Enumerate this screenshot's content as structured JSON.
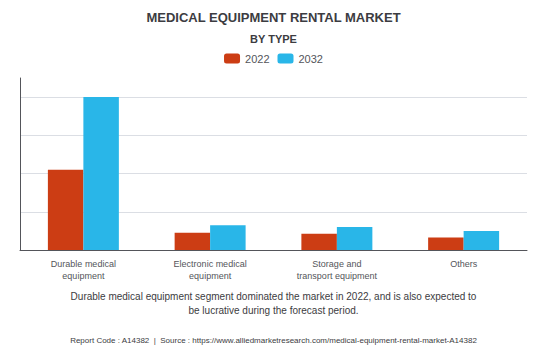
{
  "chart_data": {
    "type": "bar",
    "title": "MEDICAL EQUIPMENT RENTAL MARKET",
    "subtitle": "BY TYPE",
    "categories": [
      "Durable medical\nequipment",
      "Electronic medical\nequipment",
      "Storage and\ntransport equipment",
      "Others"
    ],
    "series": [
      {
        "name": "2022",
        "color": "#CC3D14",
        "values": [
          42,
          9,
          8.5,
          6.5
        ]
      },
      {
        "name": "2032",
        "color": "#29B6E8",
        "values": [
          80,
          13,
          12,
          10
        ]
      }
    ],
    "ylim": [
      0,
      90
    ],
    "yticks": [
      0,
      20,
      40,
      60,
      80
    ],
    "grid": true,
    "legend": "top",
    "tick_labels": "x",
    "annotations": [
      "Durable medical equipment segment dominated the market in 2022, and is also expected to\nbe lucrative during the forecast period.",
      "Report Code : A14382  |  Source : https://www.alliedmarketresearch.com/medical-equipment-rental-market-A14382"
    ]
  }
}
